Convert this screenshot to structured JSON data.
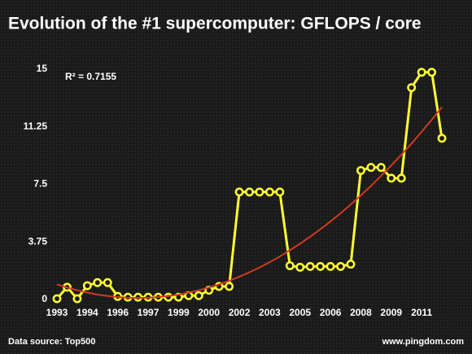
{
  "chart_data": {
    "type": "line",
    "title": "Evolution of the #1 supercomputer: GFLOPS / core",
    "annotation": "R² = 0.7155",
    "source": "Data source: Top500",
    "credit": "www.pingdom.com",
    "categories": [
      "1993",
      null,
      null,
      "1994",
      null,
      null,
      "1996",
      null,
      null,
      "1997",
      null,
      null,
      "1999",
      null,
      null,
      "2000",
      null,
      null,
      "2002",
      null,
      null,
      "2003",
      null,
      null,
      "2005",
      null,
      null,
      "2006",
      null,
      null,
      "2008",
      null,
      null,
      "2009",
      null,
      null,
      "2011",
      null,
      null
    ],
    "series": [
      {
        "color": "#ffff33",
        "values": [
          0.05,
          0.8,
          0.05,
          0.9,
          1.1,
          1.1,
          0.2,
          0.15,
          0.15,
          0.15,
          0.15,
          0.15,
          0.15,
          0.25,
          0.25,
          0.6,
          0.85,
          0.85,
          7.0,
          7.0,
          7.0,
          7.0,
          7.0,
          2.2,
          2.1,
          2.15,
          2.15,
          2.15,
          2.15,
          2.3,
          8.4,
          8.6,
          8.6,
          7.9,
          7.9,
          13.8,
          14.8,
          14.8,
          10.5
        ]
      }
    ],
    "trendline": {
      "color": "#d23a1e",
      "values": [
        0.98,
        0.78,
        0.6,
        0.45,
        0.32,
        0.22,
        0.16,
        0.11,
        0.1,
        0.11,
        0.16,
        0.22,
        0.32,
        0.45,
        0.6,
        0.78,
        0.98,
        1.22,
        1.48,
        1.77,
        2.09,
        2.43,
        2.8,
        3.21,
        3.63,
        4.09,
        4.57,
        5.08,
        5.62,
        6.19,
        6.78,
        7.4,
        8.05,
        8.73,
        9.43,
        10.16,
        10.92,
        11.71,
        12.52
      ]
    },
    "ylim": [
      0,
      15
    ],
    "yticks": [
      0,
      3.75,
      7.5,
      11.25,
      15
    ],
    "grid": false
  }
}
